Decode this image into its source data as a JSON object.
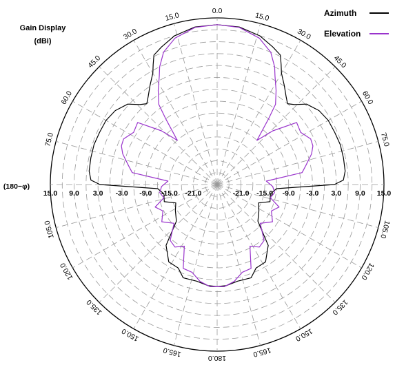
{
  "chart_data": {
    "type": "polar",
    "title": "Gain Display",
    "unit": "(dBi)",
    "radial_axis_label": "(180−φ)",
    "radial_ticks": [
      "15.0",
      "9.0",
      "3.0",
      "-3.0",
      "-9.0",
      "-15.0",
      "-21.0",
      "-21.0",
      "-15.0",
      "-9.0",
      "-3.0",
      "3.0",
      "9.0",
      "15.0"
    ],
    "radial_range_dBi": [
      -27,
      15
    ],
    "radial_step_dBi": 3,
    "angle_ticks_right": [
      "0.0",
      "15.0",
      "30.0",
      "45.0",
      "60.0",
      "75.0",
      "105.0",
      "120.0",
      "135.0",
      "150.0",
      "165.0",
      "180.0"
    ],
    "angle_ticks_left": [
      "15.0",
      "30.0",
      "45.0",
      "60.0",
      "75.0",
      "105.0",
      "120.0",
      "135.0",
      "150.0",
      "165.0"
    ],
    "angle_tick_angles_right_deg": [
      0,
      15,
      30,
      45,
      60,
      75,
      105,
      120,
      135,
      150,
      165,
      180
    ],
    "angle_tick_angles_left_deg": [
      15,
      30,
      45,
      60,
      75,
      105,
      120,
      135,
      150,
      165
    ],
    "grid": true,
    "legend_position": "top-right",
    "series": [
      {
        "name": "Azimuth",
        "color": "#000000",
        "points": [
          [
            0,
            13.3
          ],
          [
            8,
            13.1
          ],
          [
            16,
            12.0
          ],
          [
            22,
            10.4
          ],
          [
            26,
            9.3
          ],
          [
            28,
            7.3
          ],
          [
            30,
            5.4
          ],
          [
            34,
            3.2
          ],
          [
            38,
            1.2
          ],
          [
            41,
            0.0
          ],
          [
            44,
            1.0
          ],
          [
            48,
            3.3
          ],
          [
            54,
            4.7
          ],
          [
            60,
            5.3
          ],
          [
            66,
            5.4
          ],
          [
            72,
            5.6
          ],
          [
            78,
            5.5
          ],
          [
            84,
            5.4
          ],
          [
            88,
            4.8
          ],
          [
            90,
            2.5
          ],
          [
            94,
            -12.0
          ],
          [
            100,
            -13.4
          ],
          [
            108,
            -13.0
          ],
          [
            114,
            -15.6
          ],
          [
            122,
            -14.6
          ],
          [
            132,
            -13.2
          ],
          [
            140,
            -7.0
          ],
          [
            148,
            -4.0
          ],
          [
            155,
            -3.8
          ],
          [
            160,
            -2.0
          ],
          [
            168,
            -2.1
          ],
          [
            175,
            -1.4
          ],
          [
            180,
            -1.3
          ]
        ]
      },
      {
        "name": "Elevation",
        "color": "#9933cc",
        "points": [
          [
            0,
            13.3
          ],
          [
            8,
            13.0
          ],
          [
            16,
            11.4
          ],
          [
            22,
            9.0
          ],
          [
            26,
            6.0
          ],
          [
            28,
            4.0
          ],
          [
            32,
            1.0
          ],
          [
            36,
            -2.0
          ],
          [
            38,
            -6.0
          ],
          [
            42,
            -12.0
          ],
          [
            46,
            -7.5
          ],
          [
            52,
            -1.6
          ],
          [
            58,
            -2.2
          ],
          [
            64,
            -0.8
          ],
          [
            68,
            -1.0
          ],
          [
            72,
            -2.0
          ],
          [
            78,
            -4.2
          ],
          [
            82,
            -5.4
          ],
          [
            86,
            -14.6
          ],
          [
            92,
            -13.0
          ],
          [
            98,
            -12.4
          ],
          [
            104,
            -13.2
          ],
          [
            110,
            -10.4
          ],
          [
            116,
            -11.8
          ],
          [
            124,
            -10.2
          ],
          [
            132,
            -12.4
          ],
          [
            140,
            -8.6
          ],
          [
            146,
            -8.0
          ],
          [
            152,
            -9.4
          ],
          [
            158,
            -4.2
          ],
          [
            164,
            -4.0
          ],
          [
            170,
            -2.2
          ],
          [
            176,
            -1.2
          ],
          [
            180,
            -1.3
          ]
        ]
      }
    ]
  },
  "legend": [
    {
      "label": "Azimuth",
      "color": "#000000"
    },
    {
      "label": "Elevation",
      "color": "#9933cc"
    }
  ]
}
